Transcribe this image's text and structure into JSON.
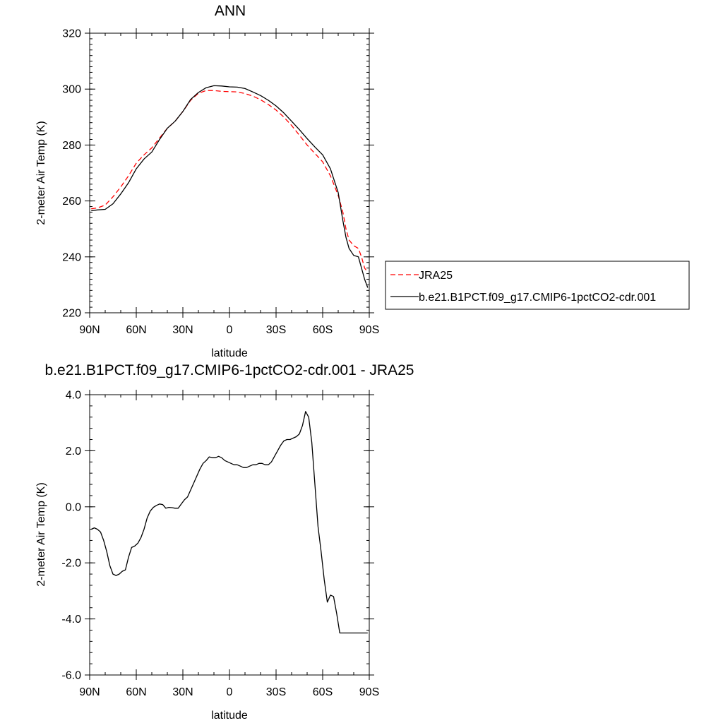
{
  "chart_data": [
    {
      "type": "line",
      "title": "ANN",
      "xlabel": "latitude",
      "ylabel": "2-meter Air Temp (K)",
      "xlim": [
        90,
        -90
      ],
      "ylim": [
        220,
        320
      ],
      "x_ticks": [
        90,
        60,
        30,
        0,
        -30,
        -60,
        -90
      ],
      "x_tick_labels": [
        "90N",
        "60N",
        "30N",
        "0",
        "30S",
        "60S",
        "90S"
      ],
      "y_ticks": [
        220,
        240,
        260,
        280,
        300,
        320
      ],
      "y_tick_labels": [
        "220",
        "240",
        "260",
        "280",
        "300",
        "320"
      ],
      "legend_position": "right, outside plot",
      "series": [
        {
          "name": "JRA25",
          "color": "#ff0000",
          "style": "dashed",
          "x": [
            89,
            85,
            80,
            75,
            70,
            65,
            60,
            55,
            50,
            45,
            40,
            35,
            30,
            25,
            20,
            15,
            10,
            5,
            0,
            -5,
            -10,
            -15,
            -20,
            -25,
            -30,
            -35,
            -40,
            -45,
            -50,
            -55,
            -60,
            -65,
            -70,
            -73,
            -75,
            -77,
            -80,
            -83,
            -85,
            -87,
            -89
          ],
          "y": [
            257.2,
            257.5,
            258.5,
            261.5,
            265,
            269,
            273.5,
            276.5,
            279,
            282.5,
            286,
            288.5,
            292,
            296,
            298.5,
            299.5,
            299.5,
            299.2,
            299.1,
            299.0,
            298.4,
            297.5,
            296.2,
            294.5,
            292.5,
            290,
            287,
            283.5,
            280,
            277,
            274,
            269,
            262,
            256,
            250,
            246,
            244,
            243,
            240,
            236,
            234.5
          ]
        },
        {
          "name": "b.e21.B1PCT.f09_g17.CMIP6-1pctCO2-cdr.001",
          "color": "#000000",
          "style": "solid",
          "x": [
            89,
            85,
            80,
            75,
            70,
            65,
            60,
            55,
            50,
            45,
            40,
            35,
            30,
            25,
            20,
            15,
            10,
            5,
            0,
            -5,
            -10,
            -15,
            -20,
            -25,
            -30,
            -35,
            -40,
            -45,
            -50,
            -55,
            -60,
            -65,
            -70,
            -73,
            -75,
            -77,
            -80,
            -83,
            -85,
            -87,
            -89
          ],
          "y": [
            256.5,
            256.8,
            257,
            259,
            262.5,
            266.5,
            271.5,
            275,
            277.5,
            282,
            286,
            288.5,
            292,
            296.3,
            298.8,
            300.5,
            301.2,
            301.1,
            300.8,
            300.7,
            300.2,
            299.0,
            297.7,
            296.0,
            294.0,
            291.5,
            288.5,
            285.5,
            282.3,
            279.3,
            276.5,
            271.5,
            263,
            253,
            247,
            243,
            240.5,
            240,
            236,
            232,
            229
          ]
        }
      ]
    },
    {
      "type": "line",
      "title": "b.e21.B1PCT.f09_g17.CMIP6-1pctCO2-cdr.001 - JRA25",
      "xlabel": "latitude",
      "ylabel": "2-meter Air Temp (K)",
      "xlim": [
        90,
        -90
      ],
      "ylim": [
        -6,
        4
      ],
      "x_ticks": [
        90,
        60,
        30,
        0,
        -30,
        -60,
        -90
      ],
      "x_tick_labels": [
        "90N",
        "60N",
        "30N",
        "0",
        "30S",
        "60S",
        "90S"
      ],
      "y_ticks": [
        -6,
        -4,
        -2,
        0,
        2,
        4
      ],
      "y_tick_labels": [
        "-6.0",
        "-4.0",
        "-2.0",
        "0.0",
        "2.0",
        "4.0"
      ],
      "series": [
        {
          "color": "#000000",
          "style": "solid",
          "x": [
            89,
            87,
            85,
            83,
            81,
            79,
            77,
            75,
            73,
            71,
            69,
            67,
            65,
            63,
            61,
            59,
            57,
            55,
            53,
            51,
            49,
            47,
            45,
            43,
            41,
            39,
            37,
            35,
            33,
            31,
            29,
            27,
            25,
            23,
            21,
            19,
            17,
            15,
            13,
            11,
            9,
            7,
            5,
            3,
            1,
            -1,
            -3,
            -5,
            -7,
            -9,
            -11,
            -13,
            -15,
            -17,
            -19,
            -21,
            -23,
            -25,
            -27,
            -29,
            -31,
            -33,
            -35,
            -37,
            -39,
            -41,
            -43,
            -45,
            -47,
            -49,
            -51,
            -53,
            -55,
            -57,
            -59,
            -61,
            -63,
            -65,
            -67,
            -69,
            -71,
            -73,
            -75,
            -77,
            -79,
            -81,
            -83,
            -85,
            -87,
            -89
          ],
          "y": [
            -0.8,
            -0.75,
            -0.8,
            -0.9,
            -1.2,
            -1.6,
            -2.1,
            -2.4,
            -2.45,
            -2.4,
            -2.3,
            -2.25,
            -1.8,
            -1.45,
            -1.4,
            -1.3,
            -1.1,
            -0.8,
            -0.4,
            -0.15,
            -0.02,
            0.05,
            0.1,
            0.08,
            -0.05,
            -0.02,
            -0.03,
            -0.05,
            -0.05,
            0.1,
            0.25,
            0.35,
            0.6,
            0.85,
            1.1,
            1.35,
            1.55,
            1.65,
            1.78,
            1.75,
            1.75,
            1.8,
            1.75,
            1.65,
            1.6,
            1.55,
            1.5,
            1.5,
            1.45,
            1.4,
            1.4,
            1.45,
            1.5,
            1.5,
            1.55,
            1.55,
            1.5,
            1.5,
            1.6,
            1.8,
            2.0,
            2.2,
            2.35,
            2.4,
            2.4,
            2.45,
            2.5,
            2.6,
            2.9,
            3.4,
            3.2,
            2.3,
            0.8,
            -0.7,
            -1.6,
            -2.6,
            -3.4,
            -3.15,
            -3.2,
            -3.8,
            -4.5,
            -4.5,
            -4.5,
            -4.5,
            -4.5,
            -4.5,
            -4.5,
            -4.5,
            -4.5,
            -4.5
          ]
        }
      ]
    }
  ]
}
